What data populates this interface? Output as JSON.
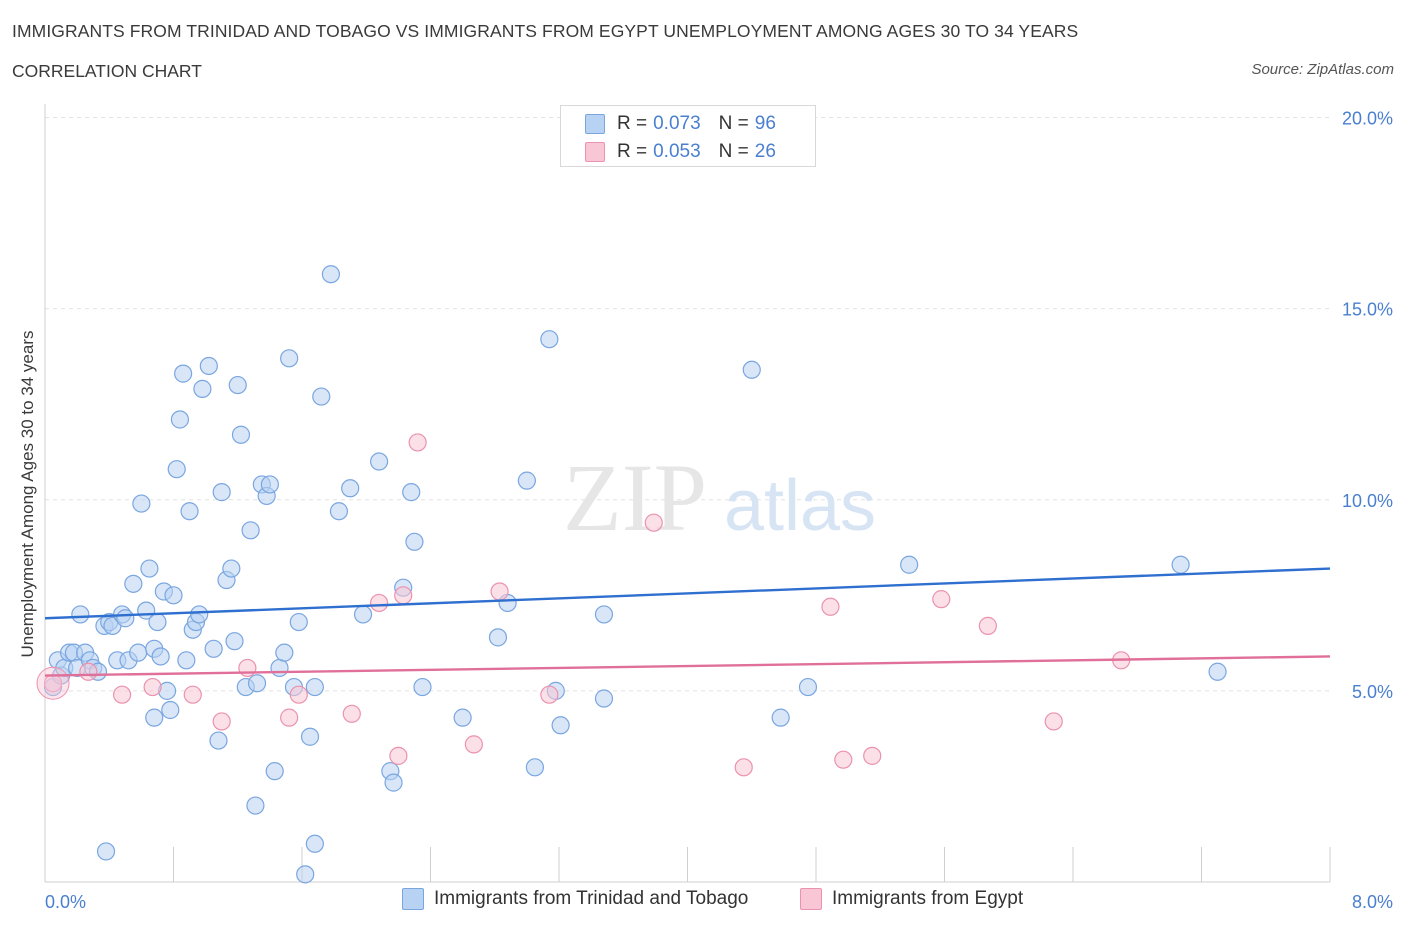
{
  "header": {
    "title": "IMMIGRANTS FROM TRINIDAD AND TOBAGO VS IMMIGRANTS FROM EGYPT UNEMPLOYMENT AMONG AGES 30 TO 34 YEARS",
    "subtitle": "CORRELATION CHART",
    "source": "Source: ZipAtlas.com"
  },
  "watermark": {
    "zip": "ZIP",
    "atlas": "atlas"
  },
  "legend_top": {
    "rows": [
      {
        "r_label": "R =",
        "r_value": "0.073",
        "n_label": "N =",
        "n_value": "96",
        "color": "#a9c8f2"
      },
      {
        "r_label": "R =",
        "r_value": "0.053",
        "n_label": "N =",
        "n_value": "26",
        "color": "#f6b9cb"
      }
    ]
  },
  "legend_bottom": [
    {
      "label": "Immigrants from Trinidad and Tobago",
      "color": "#a9c8f2"
    },
    {
      "label": "Immigrants from Egypt",
      "color": "#f6b9cb"
    }
  ],
  "colors": {
    "blue_fill": "#b8d2f3",
    "blue_stroke": "#7aa6e0",
    "blue_line": "#2f6fcf",
    "pink_fill": "#f9c6d5",
    "pink_stroke": "#eb92ae",
    "pink_line": "#e07099",
    "axis_text": "#4a7fd0",
    "grid": "#e2e2e2"
  },
  "chart_data": {
    "type": "scatter",
    "title": "IMMIGRANTS FROM TRINIDAD AND TOBAGO VS IMMIGRANTS FROM EGYPT UNEMPLOYMENT AMONG AGES 30 TO 34 YEARS",
    "xlabel": "",
    "ylabel": "Unemployment Among Ages 30 to 34 years",
    "xlim": [
      0,
      8
    ],
    "ylim": [
      0,
      20.5
    ],
    "x_tick_labels": [
      "0.0%",
      "8.0%"
    ],
    "y_ticks": [
      {
        "value": 5,
        "label": "5.0%"
      },
      {
        "value": 10,
        "label": "10.0%"
      },
      {
        "value": 15,
        "label": "15.0%"
      },
      {
        "value": 20,
        "label": "20.0%"
      }
    ],
    "grid": true,
    "legend_placement": "bottom",
    "series": [
      {
        "name": "Immigrants from Trinidad and Tobago",
        "R": 0.073,
        "N": 96,
        "trend": {
          "x": [
            0,
            8
          ],
          "y": [
            6.9,
            8.2
          ]
        },
        "points": [
          [
            0.05,
            5.1
          ],
          [
            0.08,
            5.8
          ],
          [
            0.1,
            5.4
          ],
          [
            0.12,
            5.6
          ],
          [
            0.15,
            6.0
          ],
          [
            0.18,
            6.0
          ],
          [
            0.2,
            5.6
          ],
          [
            0.22,
            7.0
          ],
          [
            0.25,
            6.0
          ],
          [
            0.28,
            5.8
          ],
          [
            0.3,
            5.6
          ],
          [
            0.33,
            5.5
          ],
          [
            0.37,
            6.7
          ],
          [
            0.4,
            6.8
          ],
          [
            0.42,
            6.7
          ],
          [
            0.45,
            5.8
          ],
          [
            0.48,
            7.0
          ],
          [
            0.5,
            6.9
          ],
          [
            0.52,
            5.8
          ],
          [
            0.55,
            7.8
          ],
          [
            0.58,
            6.0
          ],
          [
            0.6,
            9.9
          ],
          [
            0.63,
            7.1
          ],
          [
            0.65,
            8.2
          ],
          [
            0.68,
            6.1
          ],
          [
            0.7,
            6.8
          ],
          [
            0.72,
            5.9
          ],
          [
            0.74,
            7.6
          ],
          [
            0.76,
            5.0
          ],
          [
            0.78,
            4.5
          ],
          [
            0.8,
            7.5
          ],
          [
            0.82,
            10.8
          ],
          [
            0.84,
            12.1
          ],
          [
            0.86,
            13.3
          ],
          [
            0.88,
            5.8
          ],
          [
            0.9,
            9.7
          ],
          [
            0.92,
            6.6
          ],
          [
            0.94,
            6.8
          ],
          [
            0.96,
            7.0
          ],
          [
            0.98,
            12.9
          ],
          [
            1.02,
            13.5
          ],
          [
            1.05,
            6.1
          ],
          [
            1.08,
            3.7
          ],
          [
            1.1,
            10.2
          ],
          [
            1.13,
            7.9
          ],
          [
            1.16,
            8.2
          ],
          [
            1.18,
            6.3
          ],
          [
            1.2,
            13.0
          ],
          [
            1.22,
            11.7
          ],
          [
            1.25,
            5.1
          ],
          [
            1.28,
            9.2
          ],
          [
            1.32,
            5.2
          ],
          [
            1.35,
            10.4
          ],
          [
            1.38,
            10.1
          ],
          [
            1.4,
            10.4
          ],
          [
            1.43,
            2.9
          ],
          [
            1.46,
            5.6
          ],
          [
            1.49,
            6.0
          ],
          [
            1.52,
            13.7
          ],
          [
            1.55,
            5.1
          ],
          [
            1.58,
            6.8
          ],
          [
            1.62,
            0.2
          ],
          [
            1.65,
            3.8
          ],
          [
            1.68,
            5.1
          ],
          [
            1.72,
            12.7
          ],
          [
            1.78,
            15.9
          ],
          [
            1.83,
            9.7
          ],
          [
            1.9,
            10.3
          ],
          [
            1.98,
            7.0
          ],
          [
            2.08,
            11.0
          ],
          [
            2.15,
            2.9
          ],
          [
            2.17,
            2.6
          ],
          [
            2.23,
            7.7
          ],
          [
            2.28,
            10.2
          ],
          [
            2.3,
            8.9
          ],
          [
            2.35,
            5.1
          ],
          [
            2.6,
            4.3
          ],
          [
            2.82,
            6.4
          ],
          [
            2.88,
            7.3
          ],
          [
            3.0,
            10.5
          ],
          [
            3.05,
            3.0
          ],
          [
            3.14,
            14.2
          ],
          [
            3.18,
            5.0
          ],
          [
            3.21,
            4.1
          ],
          [
            3.48,
            7.0
          ],
          [
            3.48,
            4.8
          ],
          [
            4.4,
            13.4
          ],
          [
            4.58,
            4.3
          ],
          [
            4.75,
            5.1
          ],
          [
            5.38,
            8.3
          ],
          [
            7.07,
            8.3
          ],
          [
            7.3,
            5.5
          ],
          [
            0.38,
            0.8
          ],
          [
            1.68,
            1.0
          ],
          [
            1.31,
            2.0
          ],
          [
            0.68,
            4.3
          ]
        ]
      },
      {
        "name": "Immigrants from Egypt",
        "R": 0.053,
        "N": 26,
        "trend": {
          "x": [
            0,
            8
          ],
          "y": [
            5.4,
            5.9
          ]
        },
        "points": [
          [
            0.05,
            5.2
          ],
          [
            0.27,
            5.5
          ],
          [
            0.48,
            4.9
          ],
          [
            0.67,
            5.1
          ],
          [
            0.92,
            4.9
          ],
          [
            1.1,
            4.2
          ],
          [
            1.26,
            5.6
          ],
          [
            1.52,
            4.3
          ],
          [
            1.58,
            4.9
          ],
          [
            1.91,
            4.4
          ],
          [
            2.2,
            3.3
          ],
          [
            2.23,
            7.5
          ],
          [
            2.67,
            3.6
          ],
          [
            2.83,
            7.6
          ],
          [
            3.14,
            4.9
          ],
          [
            3.79,
            9.4
          ],
          [
            4.35,
            3.0
          ],
          [
            4.89,
            7.2
          ],
          [
            4.97,
            3.2
          ],
          [
            5.15,
            3.3
          ],
          [
            5.58,
            7.4
          ],
          [
            5.87,
            6.7
          ],
          [
            6.28,
            4.2
          ],
          [
            6.7,
            5.8
          ],
          [
            2.32,
            11.5
          ],
          [
            2.08,
            7.3
          ]
        ]
      }
    ]
  }
}
